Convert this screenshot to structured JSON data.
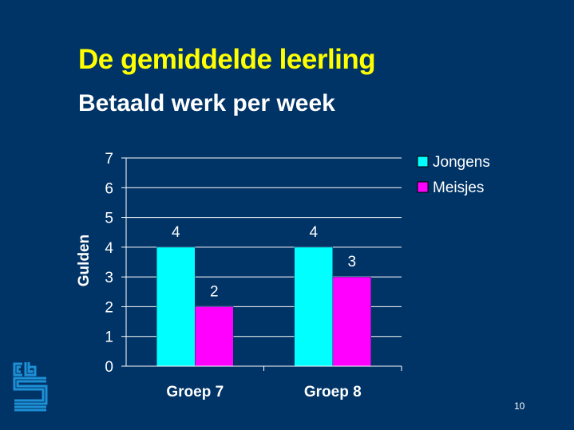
{
  "slide": {
    "title": "De gemiddelde leerling",
    "subtitle": "Betaald werk per week",
    "page_number": "10"
  },
  "colors": {
    "background": "#003366",
    "title": "#ffff00",
    "text": "#ffffff",
    "jongens": "#00ffff",
    "meisjes": "#ff00ff",
    "logo": "#1e90d6"
  },
  "chart_data": {
    "type": "bar",
    "title": "",
    "xlabel": "",
    "ylabel": "Gulden",
    "ylim": [
      0,
      7
    ],
    "yticks": [
      0,
      1,
      2,
      3,
      4,
      5,
      6,
      7
    ],
    "grid": true,
    "legend": "right",
    "categories": [
      "Groep 7",
      "Groep 8"
    ],
    "series": [
      {
        "name": "Jongens",
        "values": [
          4,
          4
        ],
        "color": "#00ffff"
      },
      {
        "name": "Meisjes",
        "values": [
          2,
          3
        ],
        "color": "#ff00ff"
      }
    ]
  }
}
